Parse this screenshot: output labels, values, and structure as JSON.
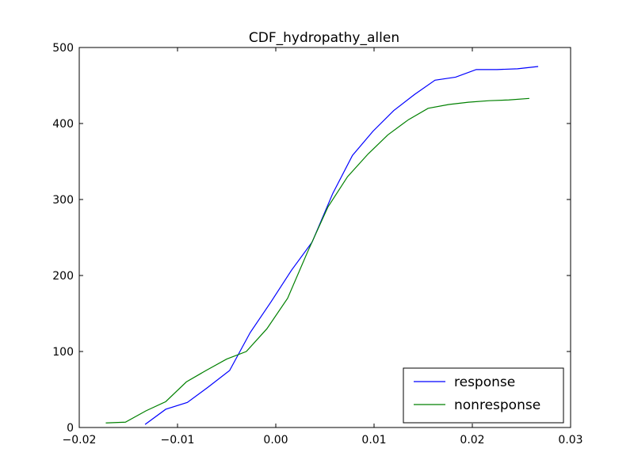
{
  "chart_data": {
    "type": "line",
    "title": "CDF_hydropathy_allen",
    "xlabel": "",
    "ylabel": "",
    "xlim": [
      -0.02,
      0.03
    ],
    "ylim": [
      0,
      500
    ],
    "xticks": [
      -0.02,
      -0.01,
      0.0,
      0.01,
      0.02,
      0.03
    ],
    "xtick_labels": [
      "−0.02",
      "−0.01",
      "0.00",
      "0.01",
      "0.02",
      "0.03"
    ],
    "yticks": [
      0,
      100,
      200,
      300,
      400,
      500
    ],
    "ytick_labels": [
      "0",
      "100",
      "200",
      "300",
      "400",
      "500"
    ],
    "grid": false,
    "legend_position": "lower right",
    "series": [
      {
        "name": "response",
        "color": "#0000ff",
        "x": [
          -0.0133,
          -0.0112,
          -0.009,
          -0.0069,
          -0.0047,
          -0.0026,
          -0.0005,
          0.0016,
          0.0037,
          0.0058,
          0.0078,
          0.0099,
          0.012,
          0.0141,
          0.0162,
          0.0183,
          0.0204,
          0.0225,
          0.0246,
          0.0267
        ],
        "y": [
          4,
          24,
          33,
          53,
          75,
          125,
          165,
          207,
          244,
          308,
          358,
          390,
          417,
          438,
          457,
          461,
          471,
          471,
          472,
          475
        ]
      },
      {
        "name": "nonresponse",
        "color": "#008000",
        "x": [
          -0.0173,
          -0.0153,
          -0.0132,
          -0.0112,
          -0.0091,
          -0.0071,
          -0.005,
          -0.003,
          -0.0009,
          0.0012,
          0.0032,
          0.0053,
          0.0073,
          0.0094,
          0.0114,
          0.0135,
          0.0155,
          0.0176,
          0.0196,
          0.0217,
          0.0237,
          0.0258
        ],
        "y": [
          6,
          7,
          22,
          34,
          60,
          75,
          90,
          100,
          130,
          170,
          230,
          290,
          330,
          360,
          385,
          405,
          420,
          425,
          428,
          430,
          431,
          433
        ]
      }
    ]
  }
}
